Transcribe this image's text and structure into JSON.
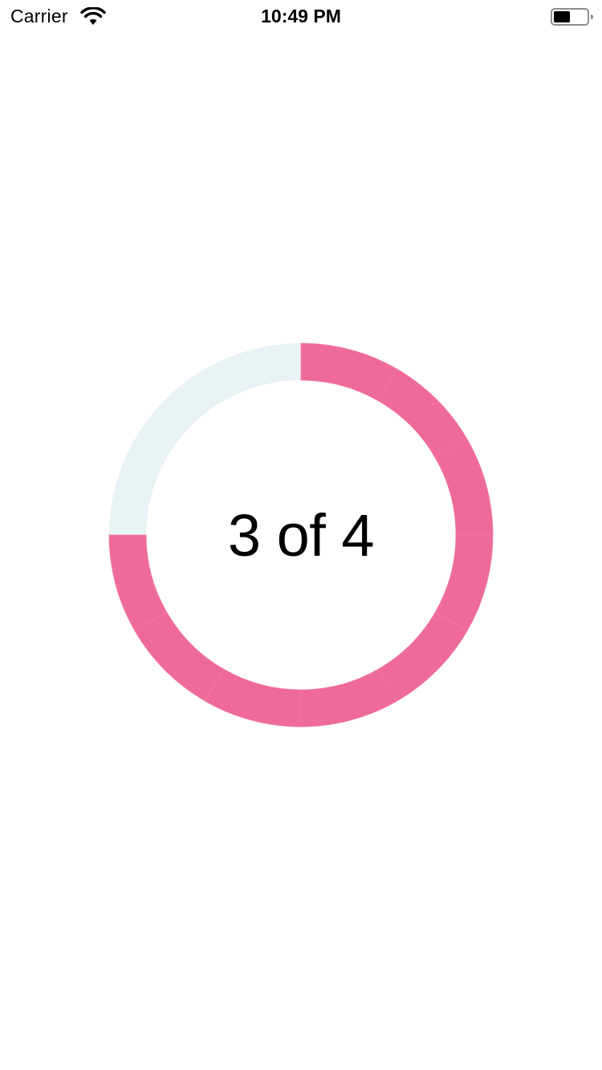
{
  "status_bar": {
    "carrier": "Carrier",
    "time": "10:49 PM",
    "wifi_icon": "wifi-icon",
    "battery_icon": "battery-icon",
    "battery_level": 0.5
  },
  "progress": {
    "label": "3 of 4",
    "current": 3,
    "total": 4,
    "fraction": 0.75,
    "segments": 12,
    "fill_color": "#ee6a9a",
    "track_color": "#e9f2f5"
  }
}
